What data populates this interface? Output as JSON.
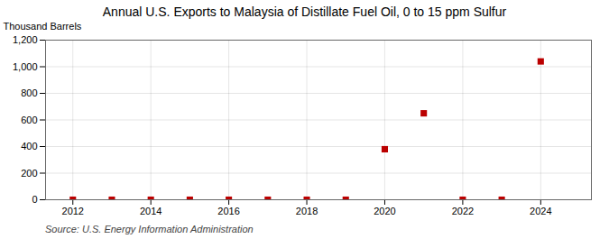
{
  "chart_data": {
    "type": "scatter",
    "title": "Annual U.S. Exports to Malaysia of Distillate Fuel Oil, 0 to 15 ppm Sulfur",
    "ylabel": "Thousand Barrels",
    "source": "Source: U.S. Energy Information Administration",
    "x": [
      2012,
      2013,
      2014,
      2015,
      2016,
      2017,
      2018,
      2019,
      2020,
      2021,
      2022,
      2023,
      2024
    ],
    "values": [
      0,
      0,
      0,
      0,
      0,
      0,
      0,
      0,
      380,
      650,
      0,
      0,
      1040
    ],
    "color": "#bb0000",
    "marker": "square",
    "grid": true,
    "xlim": [
      2011.3,
      2025.3
    ],
    "xticks": [
      2012,
      2014,
      2016,
      2018,
      2020,
      2022,
      2024
    ],
    "ylim": [
      0,
      1200
    ],
    "yticks": [
      0,
      200,
      400,
      600,
      800,
      {
        "value": 1000,
        "label": "1,000"
      },
      {
        "value": 1200,
        "label": "1,200"
      }
    ]
  }
}
